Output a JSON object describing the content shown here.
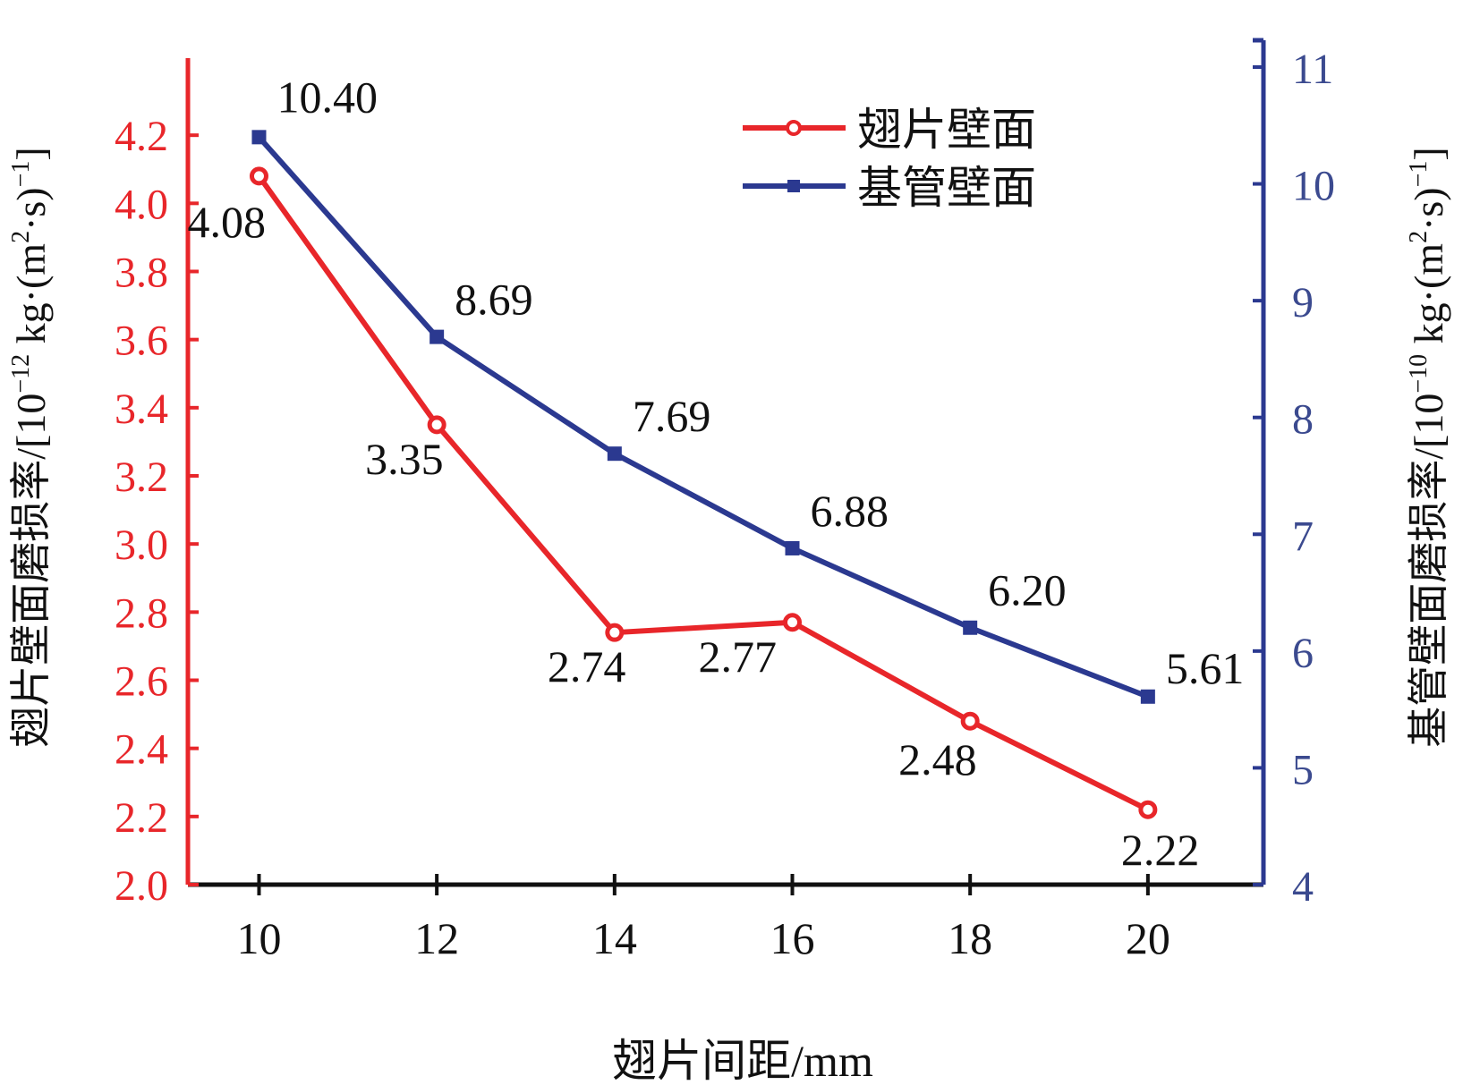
{
  "colors": {
    "fin": "#e8262a",
    "tube": "#2b3990",
    "text": "#111111",
    "left_axis": "#e8262a",
    "right_axis": "#2b3990",
    "right_ticks": "#3b4a8f"
  },
  "chart_data": {
    "type": "line",
    "xlabel": "翅片间距/mm",
    "x": [
      10,
      12,
      14,
      16,
      18,
      20
    ],
    "xlim": [
      9.2,
      21.3
    ],
    "x_ticks": [
      "10",
      "12",
      "14",
      "16",
      "18",
      "20"
    ],
    "y_left": {
      "label_main": "翅片壁面磨损率/[10",
      "label_exp": "−12",
      "label_units": " kg·(m",
      "label_sup2": "2",
      "label_close": "·s)",
      "label_sup_neg1": "−1",
      "label_end": "]",
      "lim": [
        2.0,
        4.4
      ],
      "ticks": [
        "2.0",
        "2.2",
        "2.4",
        "2.6",
        "2.8",
        "3.0",
        "3.2",
        "3.4",
        "3.6",
        "3.8",
        "4.0",
        "4.2"
      ],
      "tick_values": [
        2.0,
        2.2,
        2.4,
        2.6,
        2.8,
        3.0,
        3.2,
        3.4,
        3.6,
        3.8,
        4.0,
        4.2
      ]
    },
    "y_right": {
      "label_main": "基管壁面磨损率/[10",
      "label_exp": "−10",
      "label_units": " kg·(m",
      "label_sup2": "2",
      "label_close": "·s)",
      "label_sup_neg1": "−1",
      "label_end": "]",
      "lim": [
        4,
        11
      ],
      "ticks": [
        "4",
        "5",
        "6",
        "7",
        "8",
        "9",
        "10",
        "11"
      ],
      "tick_values": [
        4,
        5,
        6,
        7,
        8,
        9,
        10,
        11
      ]
    },
    "series": [
      {
        "name": "翅片壁面",
        "axis": "left",
        "marker": "circle",
        "values": [
          4.08,
          3.35,
          2.74,
          2.77,
          2.48,
          2.22
        ],
        "labels": [
          "4.08",
          "3.35",
          "2.74",
          "2.77",
          "2.48",
          "2.22"
        ]
      },
      {
        "name": "基管壁面",
        "axis": "right",
        "marker": "square",
        "values": [
          10.4,
          8.69,
          7.69,
          6.88,
          6.2,
          5.61
        ],
        "labels": [
          "10.40",
          "8.69",
          "7.69",
          "6.88",
          "6.20",
          "5.61"
        ]
      }
    ],
    "legend": "top-right",
    "grid": false
  }
}
